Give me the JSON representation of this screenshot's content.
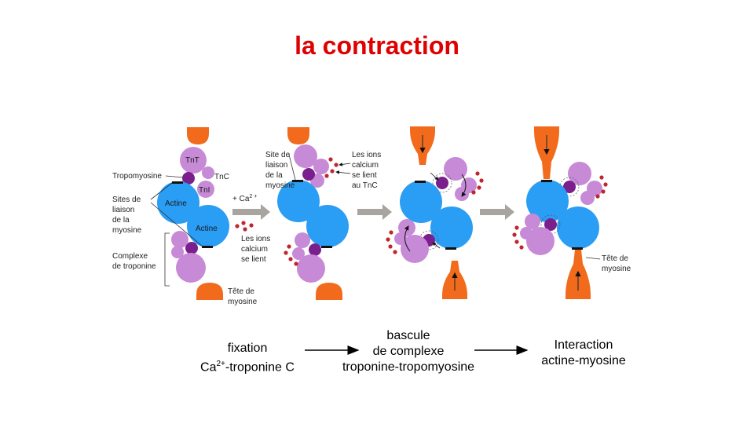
{
  "title": "la contraction",
  "panel1": {
    "tnt": "TnT",
    "tnc": "TnC",
    "tni": "TnI",
    "actine_top": "Actine",
    "actine_bottom": "Actine",
    "tropomyosine": "Tropomyosine",
    "sites": [
      "Sites de",
      "liaison",
      "de la",
      "myosine"
    ],
    "complexe": [
      "Complexe",
      "de troponine"
    ],
    "tete": [
      "Tête de",
      "myosine"
    ]
  },
  "arrow1_label": "+ Ca",
  "arrow1_sup": "2 +",
  "panel2": {
    "site": [
      "Site de",
      "liaison",
      "de la",
      "myosine"
    ],
    "ions_right": [
      "Les ions",
      "calcium",
      "se lient",
      "au TnC"
    ],
    "ions_left": [
      "Les ions",
      "calcium",
      "se lient"
    ]
  },
  "panel4": {
    "tete": [
      "Tête de",
      "myosine"
    ]
  },
  "captions": {
    "c1_line1": "fixation",
    "c1_ca": "Ca",
    "c1_sup": "2+",
    "c1_rest": "-troponine C",
    "c2": [
      "bascule",
      "de complexe",
      "troponine-tropomyosine"
    ],
    "c3": [
      "Interaction",
      "actine-myosine"
    ]
  },
  "colors": {
    "title": "#e00000",
    "actin": "#2a9df4",
    "troponin": "#c78ad6",
    "tropomyosin": "#7a1f8c",
    "myosin_head": "#f26a1b",
    "calcium": "#c0262d",
    "gray_arrow": "#a8a4a0"
  }
}
